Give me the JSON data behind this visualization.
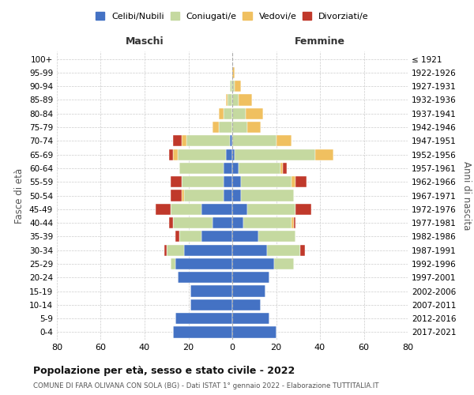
{
  "age_groups": [
    "0-4",
    "5-9",
    "10-14",
    "15-19",
    "20-24",
    "25-29",
    "30-34",
    "35-39",
    "40-44",
    "45-49",
    "50-54",
    "55-59",
    "60-64",
    "65-69",
    "70-74",
    "75-79",
    "80-84",
    "85-89",
    "90-94",
    "95-99",
    "100+"
  ],
  "birth_years": [
    "2017-2021",
    "2012-2016",
    "2007-2011",
    "2002-2006",
    "1997-2001",
    "1992-1996",
    "1987-1991",
    "1982-1986",
    "1977-1981",
    "1972-1976",
    "1967-1971",
    "1962-1966",
    "1957-1961",
    "1952-1956",
    "1947-1951",
    "1942-1946",
    "1937-1941",
    "1932-1936",
    "1927-1931",
    "1922-1926",
    "≤ 1921"
  ],
  "maschi": {
    "celibi": [
      27,
      26,
      19,
      19,
      25,
      26,
      22,
      14,
      9,
      14,
      4,
      4,
      4,
      3,
      1,
      0,
      0,
      0,
      0,
      0,
      0
    ],
    "coniugati": [
      0,
      0,
      0,
      0,
      0,
      2,
      8,
      10,
      18,
      14,
      18,
      19,
      20,
      22,
      20,
      6,
      4,
      2,
      1,
      0,
      0
    ],
    "vedovi": [
      0,
      0,
      0,
      0,
      0,
      0,
      0,
      0,
      0,
      0,
      1,
      0,
      0,
      2,
      2,
      3,
      2,
      1,
      0,
      0,
      0
    ],
    "divorziati": [
      0,
      0,
      0,
      0,
      0,
      0,
      1,
      2,
      2,
      7,
      5,
      5,
      0,
      2,
      4,
      0,
      0,
      0,
      0,
      0,
      0
    ]
  },
  "femmine": {
    "nubili": [
      20,
      17,
      13,
      15,
      17,
      19,
      16,
      12,
      5,
      7,
      4,
      4,
      3,
      1,
      0,
      0,
      0,
      0,
      0,
      0,
      0
    ],
    "coniugate": [
      0,
      0,
      0,
      0,
      0,
      9,
      15,
      17,
      22,
      22,
      24,
      23,
      19,
      37,
      20,
      7,
      6,
      3,
      1,
      0,
      0
    ],
    "vedove": [
      0,
      0,
      0,
      0,
      0,
      0,
      0,
      0,
      1,
      0,
      0,
      2,
      1,
      8,
      7,
      6,
      8,
      6,
      3,
      1,
      0
    ],
    "divorziate": [
      0,
      0,
      0,
      0,
      0,
      0,
      2,
      0,
      1,
      7,
      0,
      5,
      2,
      0,
      0,
      0,
      0,
      0,
      0,
      0,
      0
    ]
  },
  "colors": {
    "celibi_nubili": "#4472c4",
    "coniugati": "#c5d9a0",
    "vedovi": "#f0c060",
    "divorziati": "#c0392b"
  },
  "xlim": 80,
  "title": "Popolazione per età, sesso e stato civile - 2022",
  "subtitle": "COMUNE DI FARA OLIVANA CON SOLA (BG) - Dati ISTAT 1° gennaio 2022 - Elaborazione TUTTITALIA.IT",
  "ylabel_left": "Fasce di età",
  "ylabel_right": "Anni di nascita",
  "header_left": "Maschi",
  "header_right": "Femmine"
}
